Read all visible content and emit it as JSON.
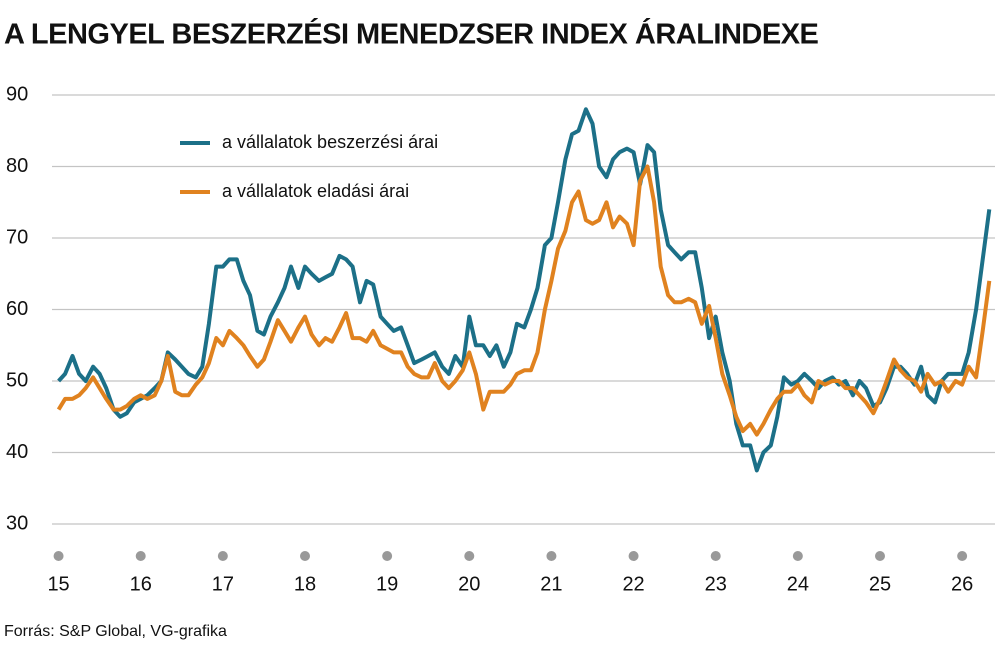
{
  "chart_data": {
    "type": "line",
    "title": "A LENGYEL BESZERZÉSI MENEDZSER INDEX ÁRALINDEXE",
    "source": "Forrás: S&P Global, VG-grafika",
    "x": [
      15,
      15.08,
      15.17,
      15.25,
      15.33,
      15.42,
      15.5,
      15.58,
      15.67,
      15.75,
      15.83,
      15.92,
      16,
      16.08,
      16.17,
      16.25,
      16.33,
      16.42,
      16.5,
      16.58,
      16.67,
      16.75,
      16.83,
      16.92,
      17,
      17.08,
      17.17,
      17.25,
      17.33,
      17.42,
      17.5,
      17.58,
      17.67,
      17.75,
      17.83,
      17.92,
      18,
      18.08,
      18.17,
      18.25,
      18.33,
      18.42,
      18.5,
      18.58,
      18.67,
      18.75,
      18.83,
      18.92,
      19,
      19.08,
      19.17,
      19.25,
      19.33,
      19.42,
      19.5,
      19.58,
      19.67,
      19.75,
      19.83,
      19.92,
      20,
      20.08,
      20.17,
      20.25,
      20.33,
      20.42,
      20.5,
      20.58,
      20.67,
      20.75,
      20.83,
      20.92,
      21,
      21.08,
      21.17,
      21.25,
      21.33,
      21.42,
      21.5,
      21.58,
      21.67,
      21.75,
      21.83,
      21.92,
      22,
      22.08,
      22.17,
      22.25,
      22.33,
      22.42,
      22.5,
      22.58,
      22.67,
      22.75,
      22.83,
      22.92,
      23,
      23.08,
      23.17,
      23.25,
      23.33,
      23.42,
      23.5,
      23.58,
      23.67,
      23.75,
      23.83,
      23.92,
      24,
      24.08,
      24.17,
      24.25,
      24.33,
      24.42,
      24.5,
      24.58,
      24.67,
      24.75,
      24.83,
      24.92,
      25,
      25.08,
      25.17,
      25.25,
      25.33,
      25.42,
      25.5,
      25.58,
      25.67,
      25.75,
      25.83,
      25.92,
      26,
      26.08,
      26.17,
      26.25,
      26.33
    ],
    "series": [
      {
        "name": "a vállalatok beszerzési árai",
        "color": "#1c7088",
        "values": [
          50,
          51,
          53.5,
          51,
          50,
          52,
          51,
          49,
          46,
          45,
          45.5,
          47,
          47.5,
          48,
          49,
          50,
          54,
          53,
          52,
          51,
          50.5,
          52,
          58,
          66,
          66,
          67,
          67,
          64,
          62,
          57,
          56.5,
          59,
          61,
          63,
          66,
          63,
          66,
          65,
          64,
          64.5,
          65,
          67.5,
          67,
          66,
          61,
          64,
          63.5,
          59,
          58,
          57,
          57.5,
          55,
          52.5,
          53,
          53.5,
          54,
          52,
          51,
          53.5,
          52,
          59,
          55,
          55,
          53.5,
          55,
          52,
          54,
          58,
          57.5,
          60,
          63,
          69,
          70,
          75,
          81,
          84.5,
          85,
          88,
          86,
          80,
          78.5,
          81,
          82,
          82.5,
          82,
          77.5,
          83,
          82,
          74,
          69,
          68,
          67,
          68,
          68,
          63,
          56,
          59,
          54,
          50,
          44,
          41,
          41,
          37.5,
          40,
          41,
          45,
          50.5,
          49.5,
          50,
          51,
          50,
          49,
          50,
          50.5,
          49.5,
          50,
          48,
          50,
          49,
          46.5,
          47,
          49,
          52,
          52,
          51,
          49.5,
          52,
          48,
          47,
          50,
          51,
          51,
          51,
          54,
          60,
          67,
          74
        ]
      },
      {
        "name": "a vállalatok eladási árai",
        "color": "#e0821f",
        "values": [
          46,
          47.5,
          47.5,
          48,
          49,
          50.5,
          49,
          47.5,
          46,
          46,
          46.5,
          47.5,
          48,
          47.5,
          48,
          50,
          53.5,
          48.5,
          48,
          48,
          49.5,
          50.5,
          52.5,
          56,
          55,
          57,
          56,
          55,
          53.5,
          52,
          53,
          55.5,
          58.5,
          57,
          55.5,
          57.5,
          59,
          56.5,
          55,
          56,
          55.5,
          57.5,
          59.5,
          56,
          56,
          55.5,
          57,
          55,
          54.5,
          54,
          54,
          52,
          51,
          50.5,
          50.5,
          52.5,
          50,
          49,
          50,
          51.5,
          54,
          51,
          46,
          48.5,
          48.5,
          48.5,
          49.5,
          51,
          51.5,
          51.5,
          54,
          60,
          64,
          68.5,
          71,
          75,
          76.5,
          72.5,
          72,
          72.5,
          75,
          71.5,
          73,
          72,
          69,
          78,
          80,
          75,
          66,
          62,
          61,
          61,
          61.5,
          61,
          58,
          60.5,
          56,
          51,
          48,
          45,
          43,
          44,
          42.5,
          44,
          46,
          47.5,
          48.5,
          48.5,
          49.5,
          48,
          47,
          50,
          49.5,
          50,
          50,
          49,
          49,
          48,
          47,
          45.5,
          47.5,
          50,
          53,
          51.5,
          50.5,
          50,
          48.5,
          51,
          49.5,
          50,
          48.5,
          50,
          49.5,
          52,
          50.5,
          57,
          64
        ]
      }
    ],
    "xlim": [
      14.92,
      26.4
    ],
    "xticks": [
      15,
      16,
      17,
      18,
      19,
      20,
      21,
      22,
      23,
      24,
      25,
      26
    ],
    "ylim": [
      30,
      90
    ],
    "yticks": [
      30,
      40,
      50,
      60,
      70,
      80,
      90
    ],
    "grid": true
  }
}
